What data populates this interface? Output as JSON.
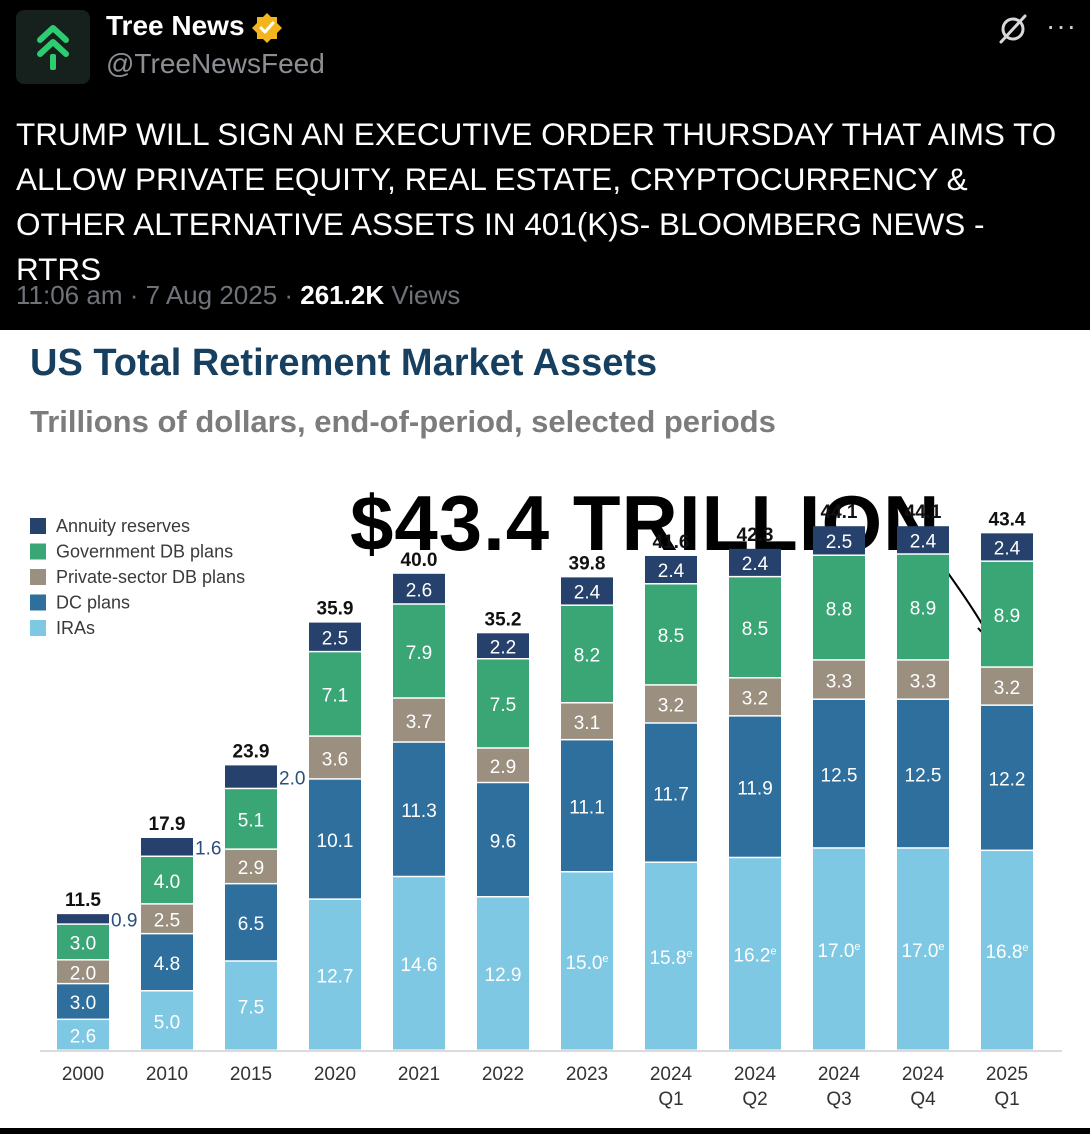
{
  "tweet": {
    "author_name": "Tree News",
    "handle": "@TreeNewsFeed",
    "text": "TRUMP WILL SIGN AN EXECUTIVE ORDER THURSDAY THAT AIMS TO ALLOW PRIVATE EQUITY, REAL ESTATE, CRYPTOCURRENCY & OTHER ALTERNATIVE ASSETS IN 401(K)S- BLOOMBERG NEWS - RTRS",
    "time_date": "11:06 am · 7 Aug 2025 · ",
    "views_count": "261.2K",
    "views_label": " Views",
    "icons": {
      "avatar": "double-chevron-up-icon",
      "verified": "verified-badge-icon",
      "grok": "grok-icon",
      "more": "more-icon"
    },
    "colors": {
      "background": "#000000",
      "avatar_accent": "#2ecc71",
      "verified": "#f2b51d"
    }
  },
  "callout": "$43.4 TRILLION",
  "chart_data": {
    "type": "bar",
    "stacked": true,
    "title": "US Total Retirement Market Assets",
    "subtitle": "Trillions of dollars, end-of-period, selected periods",
    "categories": [
      "2000",
      "2010",
      "2015",
      "2020",
      "2021",
      "2022",
      "2023",
      "2024 Q1",
      "2024 Q2",
      "2024 Q3",
      "2024 Q4",
      "2025 Q1"
    ],
    "category_lines": [
      [
        "2000"
      ],
      [
        "2010"
      ],
      [
        "2015"
      ],
      [
        "2020"
      ],
      [
        "2021"
      ],
      [
        "2022"
      ],
      [
        "2023"
      ],
      [
        "2024",
        "Q1"
      ],
      [
        "2024",
        "Q2"
      ],
      [
        "2024",
        "Q3"
      ],
      [
        "2024",
        "Q4"
      ],
      [
        "2025",
        "Q1"
      ]
    ],
    "totals": [
      "11.5",
      "17.9",
      "23.9",
      "35.9",
      "40.0",
      "35.2",
      "39.8",
      "41.6",
      "42.3",
      "44.1",
      "44.1",
      "43.4"
    ],
    "legend_position": "top-left",
    "series": [
      {
        "name": "IRAs",
        "color": "#7ec8e3",
        "values": [
          2.6,
          5.0,
          7.5,
          12.7,
          14.6,
          12.9,
          15.0,
          15.8,
          16.2,
          17.0,
          17.0,
          16.8
        ],
        "labels": [
          "2.6",
          "5.0",
          "7.5",
          "12.7",
          "14.6",
          "12.9",
          "15.0e",
          "15.8e",
          "16.2e",
          "17.0e",
          "17.0e",
          "16.8e"
        ]
      },
      {
        "name": "DC plans",
        "color": "#2e6f9e",
        "values": [
          3.0,
          4.8,
          6.5,
          10.1,
          11.3,
          9.6,
          11.1,
          11.7,
          11.9,
          12.5,
          12.5,
          12.2
        ],
        "labels": [
          "3.0",
          "4.8",
          "6.5",
          "10.1",
          "11.3",
          "9.6",
          "11.1",
          "11.7",
          "11.9",
          "12.5",
          "12.5",
          "12.2"
        ]
      },
      {
        "name": "Private-sector DB plans",
        "color": "#9b8f7f",
        "values": [
          2.0,
          2.5,
          2.9,
          3.6,
          3.7,
          2.9,
          3.1,
          3.2,
          3.2,
          3.3,
          3.3,
          3.2
        ],
        "labels": [
          "2.0",
          "2.5",
          "2.9",
          "3.6",
          "3.7",
          "2.9",
          "3.1",
          "3.2",
          "3.2",
          "3.3",
          "3.3",
          "3.2"
        ]
      },
      {
        "name": "Government DB plans",
        "color": "#3aa676",
        "values": [
          3.0,
          4.0,
          5.1,
          7.1,
          7.9,
          7.5,
          8.2,
          8.5,
          8.5,
          8.8,
          8.9,
          8.9
        ],
        "labels": [
          "3.0",
          "4.0",
          "5.1",
          "7.1",
          "7.9",
          "7.5",
          "8.2",
          "8.5",
          "8.5",
          "8.8",
          "8.9",
          "8.9"
        ]
      },
      {
        "name": "Annuity reserves",
        "color": "#26416b",
        "values": [
          0.9,
          1.6,
          2.0,
          2.5,
          2.6,
          2.2,
          2.4,
          2.4,
          2.4,
          2.5,
          2.4,
          2.4
        ],
        "labels": [
          "0.9",
          "1.6",
          "2.0",
          "2.5",
          "2.6",
          "2.2",
          "2.4",
          "2.4",
          "2.4",
          "2.5",
          "2.4",
          "2.4"
        ]
      }
    ],
    "ylim": [
      0,
      45
    ]
  }
}
